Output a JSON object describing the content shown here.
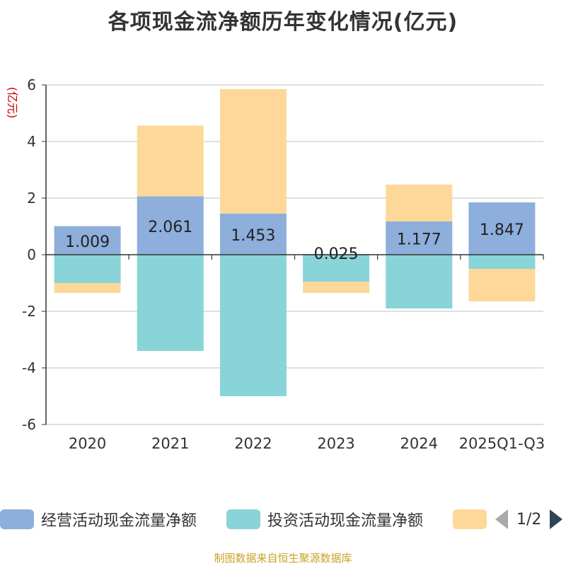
{
  "chart_data": {
    "type": "bar",
    "stacked": true,
    "title": "各项现金流净额历年变化情况(亿元)",
    "ylabel": "(亿元)",
    "xlabel": "",
    "ylim": [
      -6,
      6
    ],
    "yticks": [
      6,
      4,
      2,
      0,
      -2,
      -4,
      -6
    ],
    "categories": [
      "2020",
      "2021",
      "2022",
      "2023",
      "2024",
      "2025Q1-Q3"
    ],
    "series": [
      {
        "name": "经营活动现金流量净额",
        "color": "#8eaedb",
        "values": [
          1.009,
          2.061,
          1.453,
          0.025,
          1.177,
          1.847
        ],
        "labels": [
          "1.009",
          "2.061",
          "1.453",
          "0.025",
          "1.177",
          "1.847"
        ]
      },
      {
        "name": "投资活动现金流量净额",
        "color": "#88d4d8",
        "values": [
          -1.0,
          -3.4,
          -5.0,
          -0.95,
          -1.9,
          -0.5
        ]
      },
      {
        "name": "",
        "color": "#fdd899",
        "values": [
          -0.35,
          2.5,
          4.4,
          -0.4,
          1.3,
          -1.15
        ]
      }
    ],
    "legend_position": "bottom"
  },
  "legend": {
    "page": "1/2"
  },
  "source": "制图数据来自恒生聚源数据库"
}
